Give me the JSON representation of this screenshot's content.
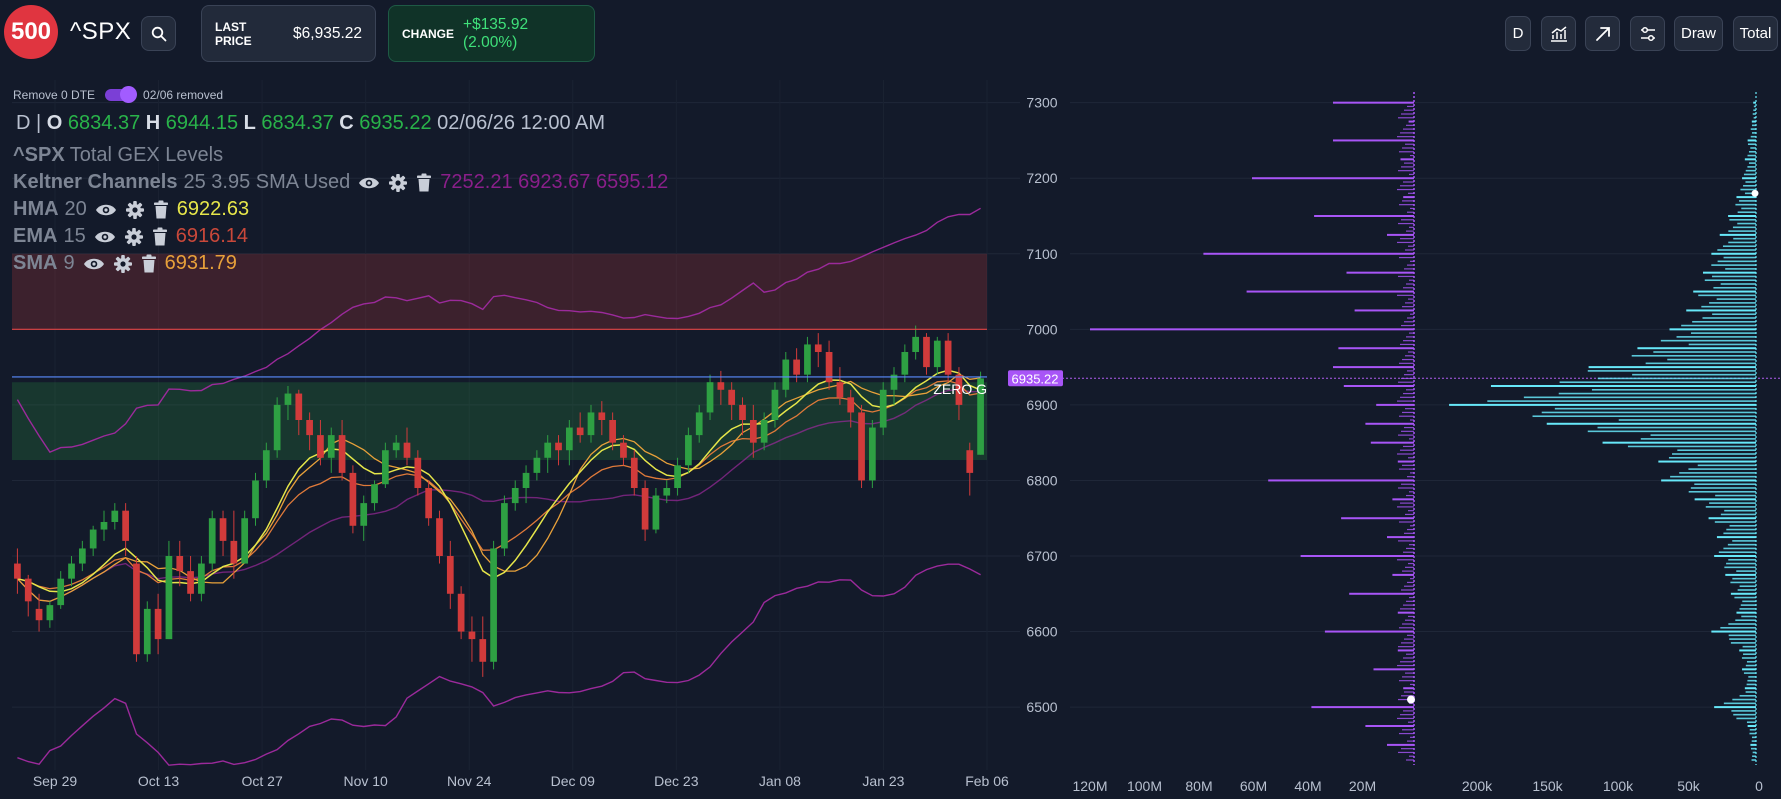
{
  "header": {
    "logo": "500",
    "ticker": "^SPX",
    "last_price_label": "LAST PRICE",
    "last_price_value": "$6,935.22",
    "change_label": "CHANGE",
    "change_value": "+$135.92 (2.00%)"
  },
  "toolbar": {
    "interval_label": "D",
    "draw_label": "Draw",
    "total_label": "Total"
  },
  "filters": {
    "remove_dte_label": "Remove 0 DTE",
    "removed_label": "02/06 removed",
    "toggle_on": true
  },
  "ohlc": {
    "interval": "D",
    "open_label": "O",
    "open": "6834.37",
    "high_label": "H",
    "high": "6944.15",
    "low_label": "L",
    "low": "6834.37",
    "close_label": "C",
    "close": "6935.22",
    "datetime": "02/06/26 12:00 AM"
  },
  "indicators": {
    "gex_title_symbol": "^SPX",
    "gex_title": "Total GEX Levels",
    "keltner_name": "Keltner Channels",
    "keltner_params": "25 3.95 SMA Used",
    "keltner_values": "7252.21 6923.67 6595.12",
    "hma_name": "HMA",
    "hma_param": "20",
    "hma_value": "6922.63",
    "ema_name": "EMA",
    "ema_param": "15",
    "ema_value": "6916.14",
    "sma_name": "SMA",
    "sma_param": "9",
    "sma_value": "6931.79"
  },
  "colors": {
    "bg": "#131a2a",
    "up": "#2ea043",
    "down": "#d13b3b",
    "hma": "#e6e64a",
    "ema": "#e07a3a",
    "sma": "#e8a13a",
    "keltner": "#9b2a9b",
    "gex": "#a855f7",
    "vol": "#67e8f9"
  },
  "chart_data": {
    "type": "candlestick",
    "price_axis": {
      "ticks": [
        "7300",
        "7200",
        "7100",
        "7000",
        "6900",
        "6800",
        "6700",
        "6600",
        "6500"
      ],
      "range": [
        6430,
        7330
      ]
    },
    "x_ticks": [
      "Sep 29",
      "Oct 13",
      "Oct 27",
      "Nov 10",
      "Nov 24",
      "Dec 09",
      "Dec 23",
      "Jan 08",
      "Jan 23",
      "Feb 06"
    ],
    "last_price_tag": "6935.22",
    "zero_gamma_label": "ZERO G",
    "zones": [
      {
        "name": "resistance-zone",
        "from": 7000,
        "to": 7100,
        "color": "#d13b3b"
      },
      {
        "name": "support-zone",
        "from": 6827,
        "to": 6930,
        "color": "#2ea043"
      }
    ],
    "levels": [
      {
        "name": "call-wall",
        "value": 7000,
        "color": "#e04444"
      },
      {
        "name": "zero-gamma",
        "value": 6937,
        "color": "#5a8cff"
      }
    ],
    "candles": [
      [
        6690,
        6710,
        6650,
        6670
      ],
      [
        6670,
        6675,
        6620,
        6640
      ],
      [
        6630,
        6650,
        6600,
        6615
      ],
      [
        6615,
        6640,
        6605,
        6635
      ],
      [
        6635,
        6680,
        6630,
        6670
      ],
      [
        6670,
        6700,
        6660,
        6690
      ],
      [
        6690,
        6720,
        6680,
        6710
      ],
      [
        6710,
        6740,
        6700,
        6735
      ],
      [
        6735,
        6760,
        6720,
        6745
      ],
      [
        6745,
        6770,
        6735,
        6760
      ],
      [
        6760,
        6770,
        6700,
        6720
      ],
      [
        6690,
        6700,
        6560,
        6570
      ],
      [
        6570,
        6640,
        6560,
        6630
      ],
      [
        6630,
        6650,
        6570,
        6590
      ],
      [
        6590,
        6720,
        6590,
        6700
      ],
      [
        6700,
        6720,
        6660,
        6680
      ],
      [
        6680,
        6700,
        6640,
        6650
      ],
      [
        6650,
        6700,
        6640,
        6690
      ],
      [
        6690,
        6760,
        6680,
        6750
      ],
      [
        6750,
        6760,
        6700,
        6720
      ],
      [
        6720,
        6760,
        6670,
        6690
      ],
      [
        6690,
        6760,
        6690,
        6750
      ],
      [
        6750,
        6810,
        6740,
        6800
      ],
      [
        6800,
        6850,
        6790,
        6840
      ],
      [
        6840,
        6910,
        6830,
        6900
      ],
      [
        6900,
        6925,
        6880,
        6915
      ],
      [
        6915,
        6920,
        6860,
        6880
      ],
      [
        6880,
        6890,
        6840,
        6860
      ],
      [
        6860,
        6880,
        6820,
        6830
      ],
      [
        6830,
        6870,
        6810,
        6860
      ],
      [
        6860,
        6880,
        6800,
        6810
      ],
      [
        6810,
        6820,
        6730,
        6740
      ],
      [
        6740,
        6780,
        6720,
        6770
      ],
      [
        6770,
        6800,
        6760,
        6795
      ],
      [
        6795,
        6850,
        6790,
        6840
      ],
      [
        6840,
        6860,
        6830,
        6850
      ],
      [
        6850,
        6870,
        6820,
        6830
      ],
      [
        6830,
        6840,
        6780,
        6790
      ],
      [
        6790,
        6800,
        6740,
        6750
      ],
      [
        6750,
        6760,
        6690,
        6700
      ],
      [
        6700,
        6720,
        6630,
        6650
      ],
      [
        6650,
        6660,
        6590,
        6600
      ],
      [
        6600,
        6620,
        6560,
        6590
      ],
      [
        6590,
        6620,
        6540,
        6560
      ],
      [
        6560,
        6720,
        6550,
        6710
      ],
      [
        6710,
        6780,
        6700,
        6770
      ],
      [
        6770,
        6800,
        6760,
        6790
      ],
      [
        6790,
        6820,
        6770,
        6810
      ],
      [
        6810,
        6840,
        6800,
        6830
      ],
      [
        6830,
        6860,
        6810,
        6850
      ],
      [
        6850,
        6860,
        6820,
        6840
      ],
      [
        6840,
        6880,
        6820,
        6870
      ],
      [
        6870,
        6890,
        6850,
        6860
      ],
      [
        6860,
        6900,
        6850,
        6890
      ],
      [
        6890,
        6905,
        6860,
        6880
      ],
      [
        6880,
        6890,
        6840,
        6850
      ],
      [
        6850,
        6860,
        6820,
        6830
      ],
      [
        6830,
        6840,
        6780,
        6790
      ],
      [
        6790,
        6800,
        6720,
        6735
      ],
      [
        6735,
        6790,
        6730,
        6780
      ],
      [
        6780,
        6800,
        6770,
        6790
      ],
      [
        6790,
        6830,
        6780,
        6820
      ],
      [
        6820,
        6870,
        6810,
        6860
      ],
      [
        6860,
        6900,
        6850,
        6890
      ],
      [
        6890,
        6940,
        6880,
        6930
      ],
      [
        6930,
        6945,
        6900,
        6920
      ],
      [
        6920,
        6930,
        6880,
        6900
      ],
      [
        6900,
        6910,
        6860,
        6880
      ],
      [
        6880,
        6900,
        6830,
        6850
      ],
      [
        6850,
        6890,
        6840,
        6880
      ],
      [
        6880,
        6930,
        6870,
        6920
      ],
      [
        6920,
        6970,
        6910,
        6960
      ],
      [
        6960,
        6975,
        6930,
        6940
      ],
      [
        6940,
        6990,
        6930,
        6980
      ],
      [
        6980,
        6995,
        6950,
        6970
      ],
      [
        6970,
        6985,
        6920,
        6930
      ],
      [
        6930,
        6950,
        6900,
        6910
      ],
      [
        6910,
        6920,
        6870,
        6890
      ],
      [
        6890,
        6900,
        6790,
        6800
      ],
      [
        6800,
        6880,
        6790,
        6870
      ],
      [
        6870,
        6930,
        6860,
        6920
      ],
      [
        6920,
        6950,
        6900,
        6940
      ],
      [
        6940,
        6980,
        6930,
        6970
      ],
      [
        6970,
        7005,
        6960,
        6990
      ],
      [
        6990,
        6995,
        6940,
        6950
      ],
      [
        6950,
        6990,
        6940,
        6985
      ],
      [
        6985,
        6995,
        6930,
        6940
      ],
      [
        6940,
        6950,
        6880,
        6900
      ],
      [
        6840,
        6850,
        6780,
        6810
      ],
      [
        6834,
        6944,
        6834,
        6935
      ]
    ],
    "gex_profile": {
      "x_ticks": [
        "120M",
        "100M",
        "80M",
        "60M",
        "40M",
        "20M"
      ],
      "levels": [
        7300,
        7275,
        7250,
        7225,
        7200,
        7175,
        7150,
        7125,
        7100,
        7075,
        7050,
        7025,
        7000,
        6975,
        6950,
        6925,
        6900,
        6875,
        6850,
        6825,
        6800,
        6775,
        6750,
        6725,
        6700,
        6675,
        6650,
        6625,
        6600,
        6575,
        6550,
        6525,
        6500,
        6475,
        6450
      ],
      "values": [
        30,
        2,
        30,
        5,
        60,
        4,
        37,
        10,
        78,
        25,
        62,
        22,
        120,
        28,
        30,
        26,
        14,
        18,
        16,
        6,
        54,
        8,
        27,
        10,
        42,
        8,
        24,
        6,
        33,
        6,
        15,
        4,
        38,
        18,
        10
      ]
    },
    "volume_profile": {
      "x_ticks": [
        "200k",
        "150k",
        "100k",
        "50k",
        "0"
      ],
      "levels": [
        7300,
        7275,
        7250,
        7225,
        7200,
        7175,
        7150,
        7125,
        7100,
        7075,
        7050,
        7025,
        7000,
        6975,
        6950,
        6925,
        6900,
        6875,
        6850,
        6825,
        6800,
        6775,
        6750,
        6725,
        6700,
        6675,
        6650,
        6625,
        6600,
        6575,
        6550,
        6525,
        6500,
        6475,
        6450
      ],
      "values": [
        2,
        3,
        6,
        8,
        10,
        14,
        20,
        26,
        32,
        38,
        45,
        50,
        62,
        85,
        120,
        190,
        220,
        150,
        110,
        70,
        68,
        44,
        34,
        28,
        30,
        22,
        18,
        14,
        32,
        12,
        10,
        8,
        30,
        6,
        4
      ]
    }
  }
}
